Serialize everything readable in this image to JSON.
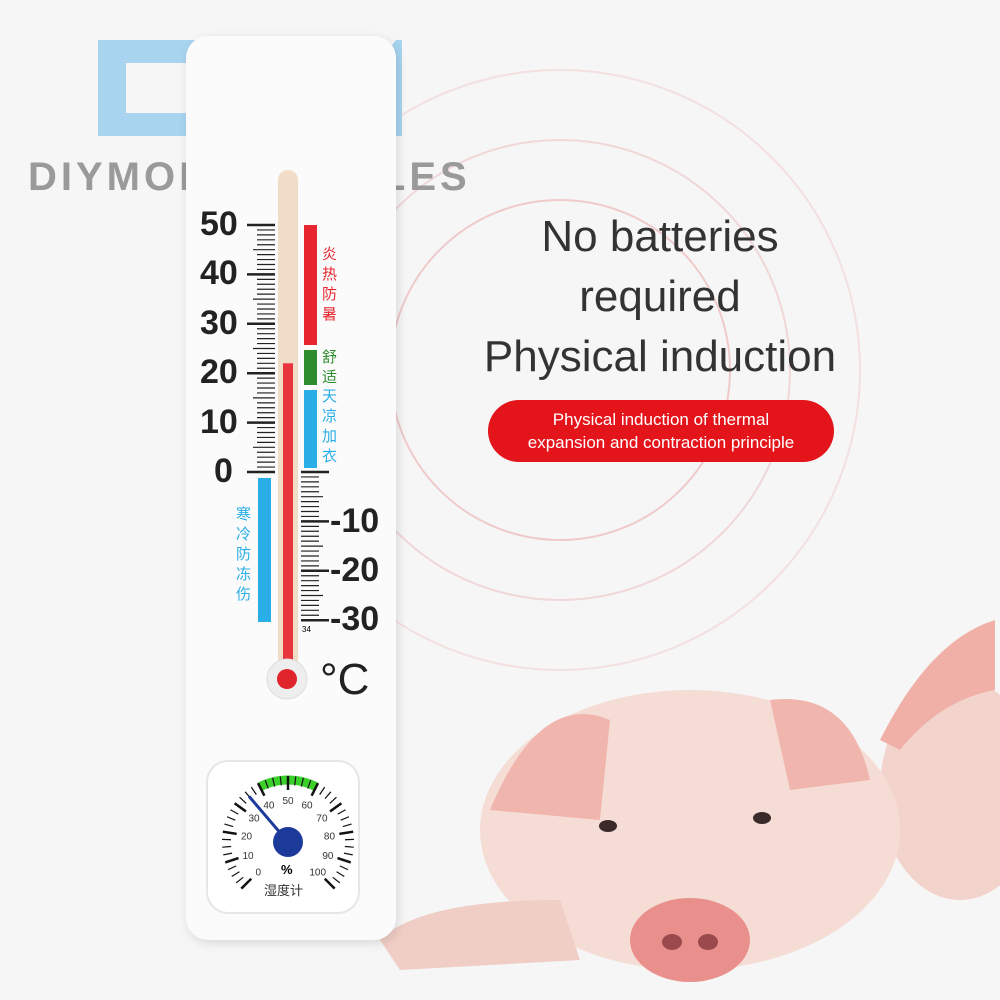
{
  "brand": {
    "logo": "DM",
    "name": "DIYMOREMODULES",
    "logo_color": "#a8d4f0"
  },
  "headline": {
    "line1": "No batteries",
    "line2": "required",
    "line3": "Physical induction"
  },
  "badge": {
    "line1": "Physical induction of thermal",
    "line2": "expansion and contraction principle",
    "color": "#e4141b"
  },
  "thermometer": {
    "left_scale": [
      "50",
      "40",
      "30",
      "20",
      "10",
      "0"
    ],
    "right_scale": [
      "-10",
      "-20",
      "-30"
    ],
    "unit": "°C",
    "small_mark": "34",
    "reading_c": 22,
    "zones": [
      {
        "label": "炎热防暑",
        "color": "#e8262f"
      },
      {
        "label": "舒适",
        "color": "#2e8b2e"
      },
      {
        "label": "天凉加衣",
        "color": "#29aee8"
      },
      {
        "label": "寒冷防冻伤",
        "color": "#29aee8"
      }
    ]
  },
  "hygrometer": {
    "labels": [
      "0",
      "10",
      "20",
      "30",
      "40",
      "50",
      "60",
      "70",
      "80",
      "90",
      "100"
    ],
    "unit": "%",
    "title": "湿度计",
    "reading_percent": 35,
    "comfort_range": [
      40,
      60
    ]
  }
}
